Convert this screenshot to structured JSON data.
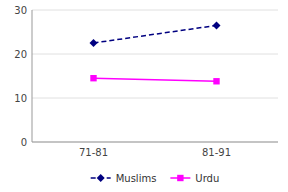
{
  "chart_data": {
    "type": "line",
    "categories": [
      "71-81",
      "81-91"
    ],
    "series": [
      {
        "name": "Muslims",
        "color": "#000080",
        "marker": "diamond",
        "line_style": "dashed",
        "values": [
          22.5,
          26.5
        ]
      },
      {
        "name": "Urdu",
        "color": "#FF00FF",
        "marker": "square",
        "line_style": "solid",
        "values": [
          14.5,
          13.8
        ]
      }
    ],
    "ylim": [
      0,
      30
    ],
    "yticks": [
      0,
      10,
      20,
      30
    ],
    "grid": true,
    "legend": "bottom"
  }
}
